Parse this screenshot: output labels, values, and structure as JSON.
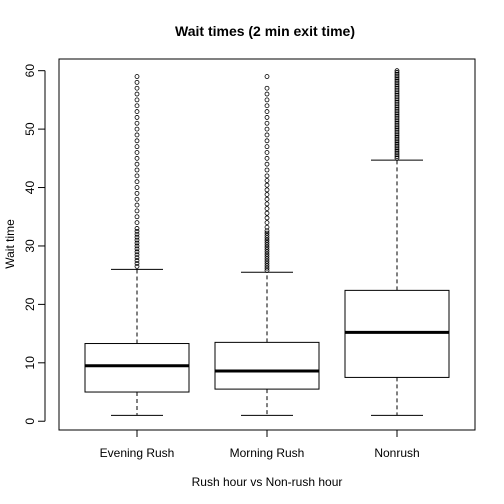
{
  "chart_data": {
    "type": "boxplot",
    "title": "Wait times (2 min exit time)",
    "xlabel": "Rush hour vs Non-rush hour",
    "ylabel": "Wait time",
    "ylim": [
      -1.5,
      62
    ],
    "yticks": [
      0,
      10,
      20,
      30,
      40,
      50,
      60
    ],
    "categories": [
      "Evening Rush",
      "Morning Rush",
      "Nonrush"
    ],
    "boxes": [
      {
        "category": "Evening Rush",
        "whisker_low": 1,
        "q1": 5,
        "median": 9.5,
        "q3": 13.3,
        "whisker_high": 26,
        "outliers": [
          26.5,
          27,
          27.5,
          28,
          28.5,
          29,
          29.5,
          30,
          30.5,
          31,
          31.5,
          32,
          32.5,
          33,
          34,
          35,
          36,
          37,
          38,
          39,
          40,
          41,
          42,
          43,
          44,
          45,
          46,
          47,
          48,
          49,
          50,
          51,
          52,
          53,
          54,
          55,
          56,
          57,
          58,
          59
        ]
      },
      {
        "category": "Morning Rush",
        "whisker_low": 1,
        "q1": 5.5,
        "median": 8.6,
        "q3": 13.5,
        "whisker_high": 25.5,
        "outliers": [
          25.8,
          26.2,
          26.6,
          27,
          27.4,
          27.8,
          28.2,
          28.6,
          29,
          29.4,
          29.8,
          30.2,
          30.6,
          31,
          31.4,
          31.8,
          32.2,
          32.6,
          33.2,
          34,
          34.8,
          35.6,
          36.4,
          37.2,
          38,
          38.8,
          39.6,
          40.4,
          41.2,
          42,
          43,
          44,
          45,
          46,
          47,
          48,
          49,
          50,
          51,
          52,
          53,
          54,
          55,
          56,
          57,
          59
        ]
      },
      {
        "category": "Nonrush",
        "whisker_low": 1,
        "q1": 7.5,
        "median": 15.2,
        "q3": 22.4,
        "whisker_high": 44.7,
        "outliers": [
          45,
          45.3,
          45.6,
          45.9,
          46.2,
          46.5,
          46.8,
          47.1,
          47.4,
          47.7,
          48,
          48.3,
          48.6,
          48.9,
          49.2,
          49.5,
          49.8,
          50.1,
          50.4,
          50.7,
          51,
          51.3,
          51.6,
          51.9,
          52.2,
          52.5,
          52.8,
          53.1,
          53.4,
          53.7,
          54,
          54.3,
          54.6,
          54.9,
          55.2,
          55.5,
          55.8,
          56.1,
          56.4,
          56.7,
          57,
          57.3,
          57.6,
          57.9,
          58.2,
          58.5,
          58.8,
          59.1,
          59.4,
          59.7,
          60
        ]
      }
    ],
    "grid": false,
    "legend": "none"
  }
}
